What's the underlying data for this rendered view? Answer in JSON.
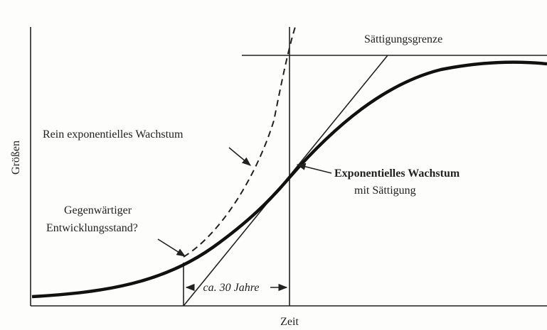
{
  "labels": {
    "saturation_limit": "Sättigungsgrenze",
    "pure_exponential": "Rein exponentielles Wachstum",
    "saturating_line1": "Exponentielles Wachstum",
    "saturating_line2": "mit Sättigung",
    "current_line1": "Gegenwärtiger",
    "current_line2": "Entwicklungsstand?",
    "interval": "ca. 30 Jahre",
    "y_axis": "Größen",
    "x_axis": "Zeit"
  }
}
